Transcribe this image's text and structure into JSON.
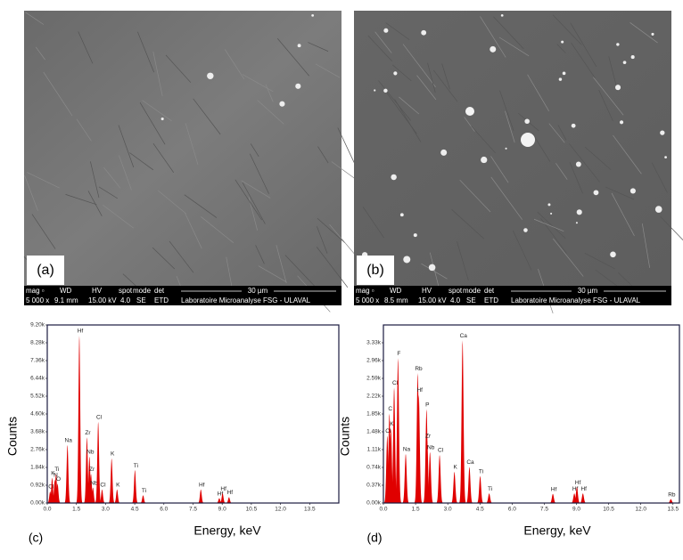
{
  "panels": [
    {
      "letter": "(a)",
      "info": {
        "header": [
          "mag ▫",
          "WD",
          "HV",
          "spot",
          "mode",
          "det"
        ],
        "values": [
          "5 000 x",
          "9.1 mm",
          "15.00 kV",
          "4.0",
          "SE",
          "ETD"
        ],
        "scale": "30 µm",
        "lab": "Laboratoire Microanalyse FSG - ULAVAL"
      }
    },
    {
      "letter": "(b)",
      "info": {
        "header": [
          "mag ▫",
          "WD",
          "HV",
          "spot",
          "mode",
          "det"
        ],
        "values": [
          "5 000 x",
          "8.5 mm",
          "15.00 kV",
          "4.0",
          "SE",
          "ETD"
        ],
        "scale": "30 µm",
        "lab": "Laboratoire Microanalyse FSG - ULAVAL"
      }
    }
  ],
  "chart_data": [
    {
      "type": "spectrum",
      "panel": "(c)",
      "x_label": "Energy, keV",
      "y_label": "Counts",
      "color": "#e00000",
      "xlim": [
        0,
        15
      ],
      "ylim": [
        0,
        9200
      ],
      "xticks": [
        {
          "value": 0,
          "label": "0.0"
        },
        1.5,
        {
          "value": 3,
          "label": "3.0"
        },
        4.5,
        {
          "value": 6,
          "label": "6.0"
        },
        7.5,
        {
          "value": 9,
          "label": "9.0"
        },
        10.5,
        {
          "value": 12,
          "label": "12.0"
        },
        13.5
      ],
      "yticks": [
        {
          "value": 0,
          "label": "0.00k"
        },
        {
          "value": 920,
          "label": "0.92k"
        },
        {
          "value": 1840,
          "label": "1.84k"
        },
        {
          "value": 2760,
          "label": "2.76k"
        },
        {
          "value": 3680,
          "label": "3.68k"
        },
        {
          "value": 4600,
          "label": "4.60k"
        },
        {
          "value": 5520,
          "label": "5.52k"
        },
        {
          "value": 6440,
          "label": "6.44k"
        },
        {
          "value": 7360,
          "label": "7.36k"
        },
        {
          "value": 8280,
          "label": "8.28k"
        },
        {
          "value": 9200,
          "label": "9.20k"
        }
      ],
      "labels": [
        "Cl",
        "K",
        "N",
        "Ti",
        "O",
        "Na",
        "Hf",
        "Zr",
        "Nb",
        "Zr",
        "Nb",
        "Cl",
        "Cl",
        "K",
        "K",
        "Ti",
        "Ti",
        "Hf",
        "Hf",
        "Hf",
        "Hf"
      ],
      "x": [
        0.15,
        0.25,
        0.39,
        0.45,
        0.53,
        1.04,
        1.65,
        2.04,
        2.17,
        2.25,
        2.35,
        2.62,
        2.82,
        3.31,
        3.59,
        4.51,
        4.93,
        7.9,
        8.85,
        9.02,
        9.35
      ],
      "values": [
        600,
        1300,
        1200,
        1500,
        1000,
        3000,
        8650,
        3400,
        2400,
        1500,
        800,
        4200,
        700,
        2300,
        700,
        1700,
        400,
        700,
        250,
        500,
        300
      ]
    },
    {
      "type": "spectrum",
      "panel": "(d)",
      "x_label": "Energy, keV",
      "y_label": "Counts",
      "color": "#e00000",
      "xlim": [
        0,
        13.8
      ],
      "ylim": [
        0,
        3700
      ],
      "xticks": [
        {
          "value": 0,
          "label": "0.0"
        },
        1.5,
        {
          "value": 3,
          "label": "3.0"
        },
        4.5,
        {
          "value": 6,
          "label": "6.0"
        },
        7.5,
        {
          "value": 9,
          "label": "9.0"
        },
        10.5,
        {
          "value": 12,
          "label": "12.0"
        },
        13.5
      ],
      "yticks": [
        {
          "value": 0,
          "label": "0.00k"
        },
        {
          "value": 370,
          "label": "0.37k"
        },
        {
          "value": 740,
          "label": "0.74k"
        },
        {
          "value": 1110,
          "label": "1.11k"
        },
        {
          "value": 1480,
          "label": "1.48k"
        },
        {
          "value": 1850,
          "label": "1.85k"
        },
        {
          "value": 2220,
          "label": "2.22k"
        },
        {
          "value": 2590,
          "label": "2.59k"
        },
        {
          "value": 2960,
          "label": "2.96k"
        },
        {
          "value": 3330,
          "label": "3.33k"
        }
      ],
      "labels": [
        "Cl",
        "C",
        "K",
        "Cl",
        "F",
        "Na",
        "Rb",
        "Hf",
        "P",
        "Zr",
        "Nb",
        "Cl",
        "K",
        "Ca",
        "Ca",
        "Ti",
        "Ti",
        "Hf",
        "Hf",
        "Hf",
        "Hf",
        "Rb"
      ],
      "x": [
        0.18,
        0.28,
        0.35,
        0.5,
        0.68,
        1.04,
        1.6,
        1.65,
        2.01,
        2.04,
        2.17,
        2.62,
        3.31,
        3.69,
        4.01,
        4.51,
        4.93,
        7.9,
        8.9,
        9.02,
        9.3,
        13.4
      ],
      "values": [
        1400,
        1860,
        1550,
        2400,
        3010,
        1020,
        2700,
        2250,
        1950,
        1300,
        1060,
        1000,
        650,
        3380,
        750,
        560,
        200,
        190,
        200,
        330,
        200,
        80
      ]
    }
  ]
}
